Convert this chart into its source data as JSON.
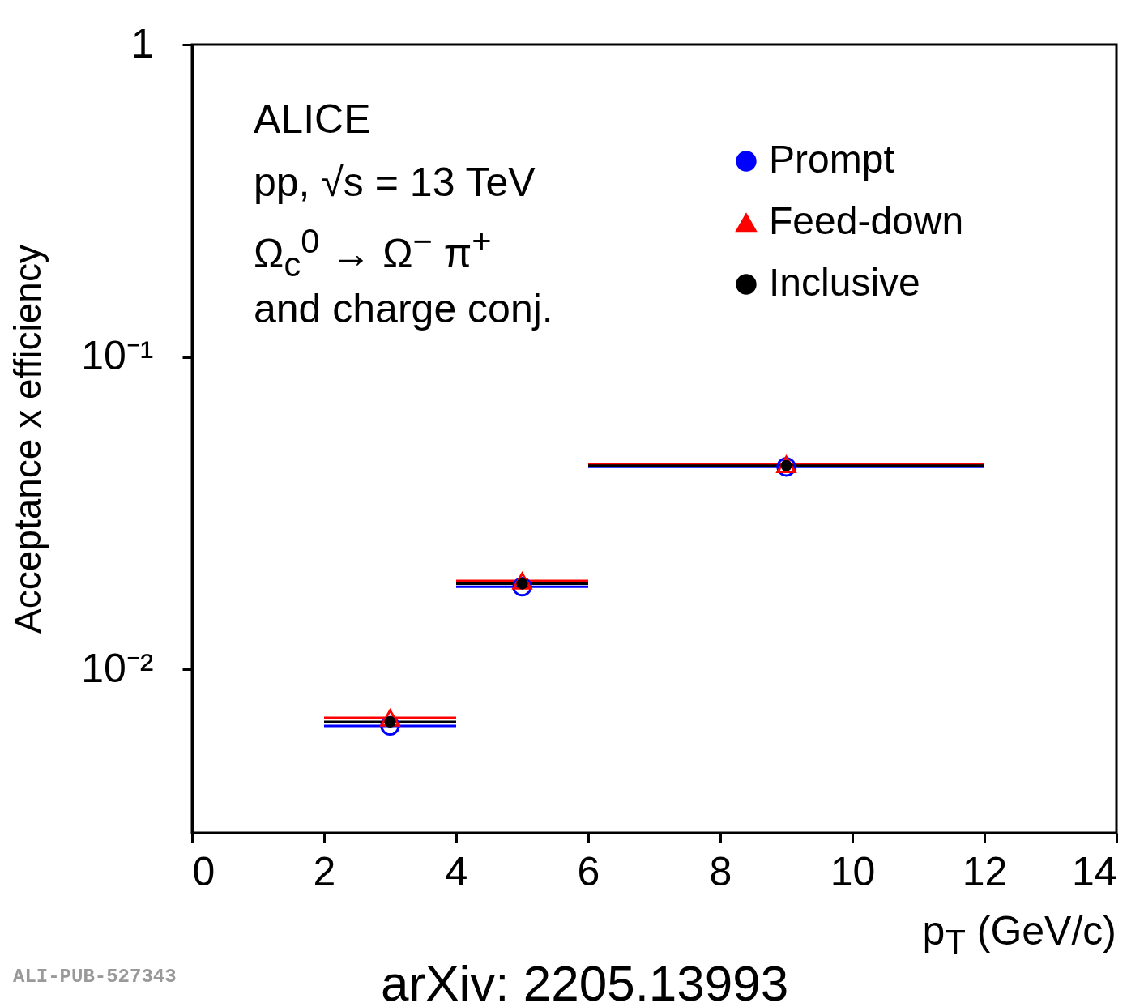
{
  "chart_data": {
    "type": "scatter",
    "xlabel": "p$_{T}$ (GeV/c)",
    "ylabel": "Acceptance x efficiency",
    "annotations": [
      "ALICE",
      "pp, √s = 13 TeV",
      "Ω$_{c}$$^{0}$ → Ω$^{−}$ π$^{+}$",
      "and charge conj.",
      "ALI-PUB-527343",
      "arXiv: 2205.13993"
    ],
    "x": [
      3,
      5,
      9
    ],
    "series": [
      {
        "name": "Prompt",
        "color": "#0000ff",
        "marker": "circle",
        "values": [
          0.0066,
          0.0184,
          0.0445
        ],
        "xerrors": [
          1,
          1,
          3
        ]
      },
      {
        "name": "Feed-down",
        "color": "#ff0000",
        "marker": "triangle",
        "values": [
          0.007,
          0.0192,
          0.0453
        ],
        "xerrors": [
          1,
          1,
          3
        ]
      },
      {
        "name": "Inclusive",
        "color": "#000000",
        "marker": "circle",
        "values": [
          0.0068,
          0.0188,
          0.0449
        ],
        "xerrors": [
          1,
          1,
          3
        ]
      }
    ],
    "xlim": [
      0,
      14
    ],
    "xticks": [
      0,
      2,
      4,
      6,
      8,
      10,
      12,
      14
    ],
    "ylim": [
      0.003,
      1
    ],
    "yticks": [
      {
        "value": 0.01,
        "label": "10⁻²"
      },
      {
        "value": 0.1,
        "label": "10⁻¹"
      },
      1
    ],
    "log": true,
    "grid": false,
    "legend": "top right"
  }
}
